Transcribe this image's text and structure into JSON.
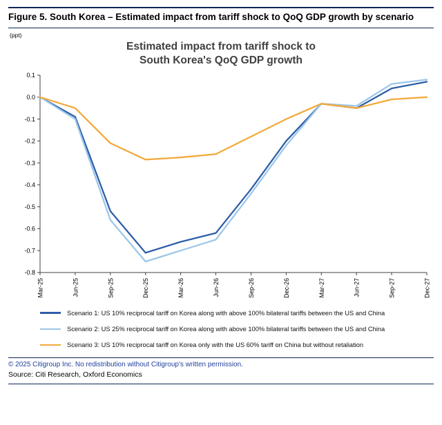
{
  "figure": {
    "title": "Figure 5. South Korea – Estimated impact from tariff shock to QoQ GDP growth by scenario",
    "unit_label": "(ppt)"
  },
  "footer": {
    "copyright": "© 2025 Citigroup Inc. No redistribution without Citigroup's written permission.",
    "source": "Source: Citi Research, Oxford Economics"
  },
  "colors": {
    "rule_navy": "#0F2557",
    "copyright_text": "#21409A",
    "axis": "#404040",
    "scenario1": "#2E5EA8",
    "scenario2": "#9CC7E9",
    "scenario3": "#F2A93B"
  },
  "chart_data": {
    "type": "line",
    "title_lines": [
      "Estimated impact from tariff shock to",
      "South Korea's QoQ GDP growth"
    ],
    "xlabel": "",
    "ylabel": "ppt",
    "grid": false,
    "legend_position": "bottom",
    "ylim": [
      -0.8,
      0.1
    ],
    "ytick_values": [
      0.1,
      0.0,
      -0.1,
      -0.2,
      -0.3,
      -0.4,
      -0.5,
      -0.6,
      -0.7,
      -0.8
    ],
    "ytick_labels": [
      "0.1",
      "0.0",
      "-0.1",
      "-0.2",
      "-0.3",
      "-0.4",
      "-0.5",
      "-0.6",
      "-0.7",
      "-0.8"
    ],
    "categories": [
      "Mar-25",
      "Jun-25",
      "Sep-25",
      "Dec-25",
      "Mar-26",
      "Jun-26",
      "Sep-26",
      "Dec-26",
      "Mar-27",
      "Jun-27",
      "Sep-27",
      "Dec-27"
    ],
    "series": [
      {
        "name": "Scenario 1: US 10% reciprocal tariff on Korea along with above 100% bilateral tariffs between the US and China",
        "color": "#2E5EA8",
        "values": [
          0.0,
          -0.09,
          -0.52,
          -0.71,
          -0.66,
          -0.62,
          -0.42,
          -0.2,
          -0.03,
          -0.05,
          0.04,
          0.07
        ]
      },
      {
        "name": "Scenario 2: US 25% reciprocal tariff on Korea along with above 100% bilateral tariffs between the US and China",
        "color": "#9CC7E9",
        "values": [
          0.0,
          -0.1,
          -0.56,
          -0.75,
          -0.7,
          -0.65,
          -0.44,
          -0.22,
          -0.03,
          -0.04,
          0.06,
          0.08
        ]
      },
      {
        "name": "Scenario 3: US 10% reciprocal tariff on Korea only with the US 60% tariff on China but without retaliation",
        "color": "#F2A93B",
        "values": [
          0.0,
          -0.05,
          -0.21,
          -0.285,
          -0.275,
          -0.26,
          -0.18,
          -0.1,
          -0.03,
          -0.05,
          -0.01,
          0.0
        ]
      }
    ]
  }
}
